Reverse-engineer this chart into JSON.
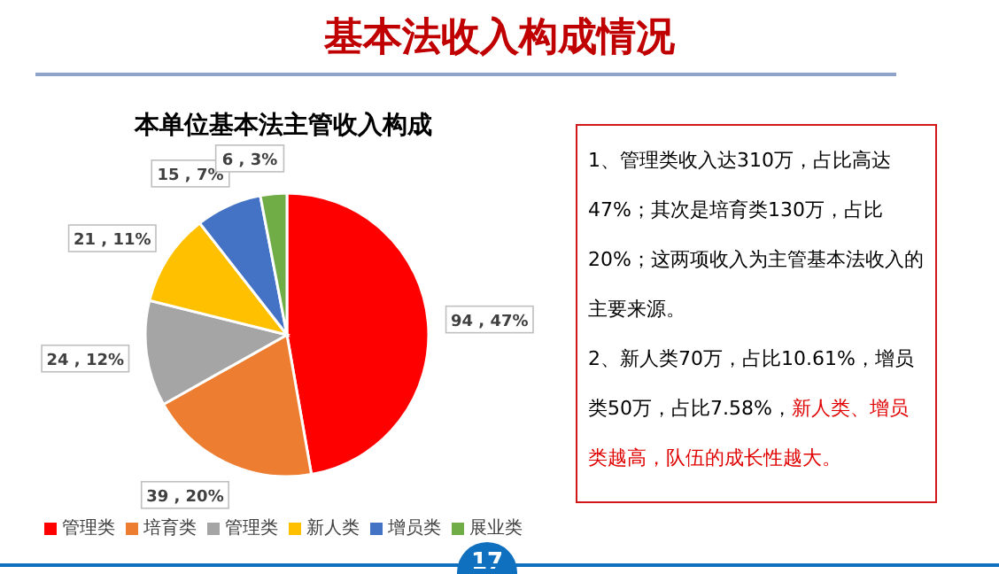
{
  "chart_data": {
    "type": "pie",
    "title": "基本法收入构成情况",
    "subtitle": "本单位基本法主管收入构成",
    "categories": [
      "管理类",
      "培育类",
      "管理类",
      "新人类",
      "增员类",
      "展业类"
    ],
    "values": [
      94,
      39,
      24,
      21,
      15,
      6
    ],
    "colors": [
      "#ff0000",
      "#ed7d31",
      "#a5a5a5",
      "#ffc000",
      "#4472c4",
      "#70ad47"
    ],
    "value_labels": [
      "94 , 47%",
      "39 , 20%",
      "24 , 12%",
      "21 , 11%",
      "15 , 7%",
      "6 , 3%"
    ],
    "legend": "bottom",
    "annotations": [
      "1、管理类收入达310万，占比高达47%；其次是培育类130万，占比20%；这两项收入为主管基本法收入的主要来源。",
      "2、新人类70万，占比10.61%，增员类50万，占比7.58%，",
      "新人类、增员类越高，队伍的成长性越大。",
      "17"
    ]
  }
}
